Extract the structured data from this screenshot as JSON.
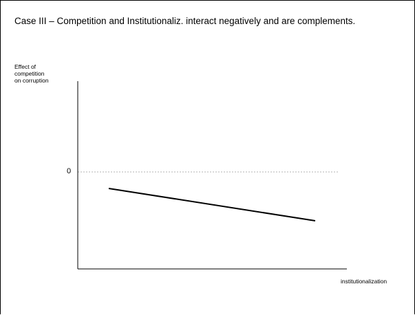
{
  "slide": {
    "title": "Case III – Competition and Institutionaliz. interact negatively and are complements."
  },
  "axes": {
    "y_label_lines": [
      "Effect of",
      "competition",
      "on corruption"
    ],
    "x_label": "institutionalization",
    "zero_label": "0"
  },
  "colors": {
    "axis": "#000000",
    "line": "#000000",
    "zero_reference": "#999999"
  },
  "chart_data": {
    "type": "line",
    "xlabel": "institutionalization",
    "ylabel": "Effect of competition on corruption",
    "reference_line": {
      "y": 0,
      "style": "dashed"
    },
    "series": [
      {
        "trend": "decreasing",
        "sign": "negative"
      }
    ]
  }
}
